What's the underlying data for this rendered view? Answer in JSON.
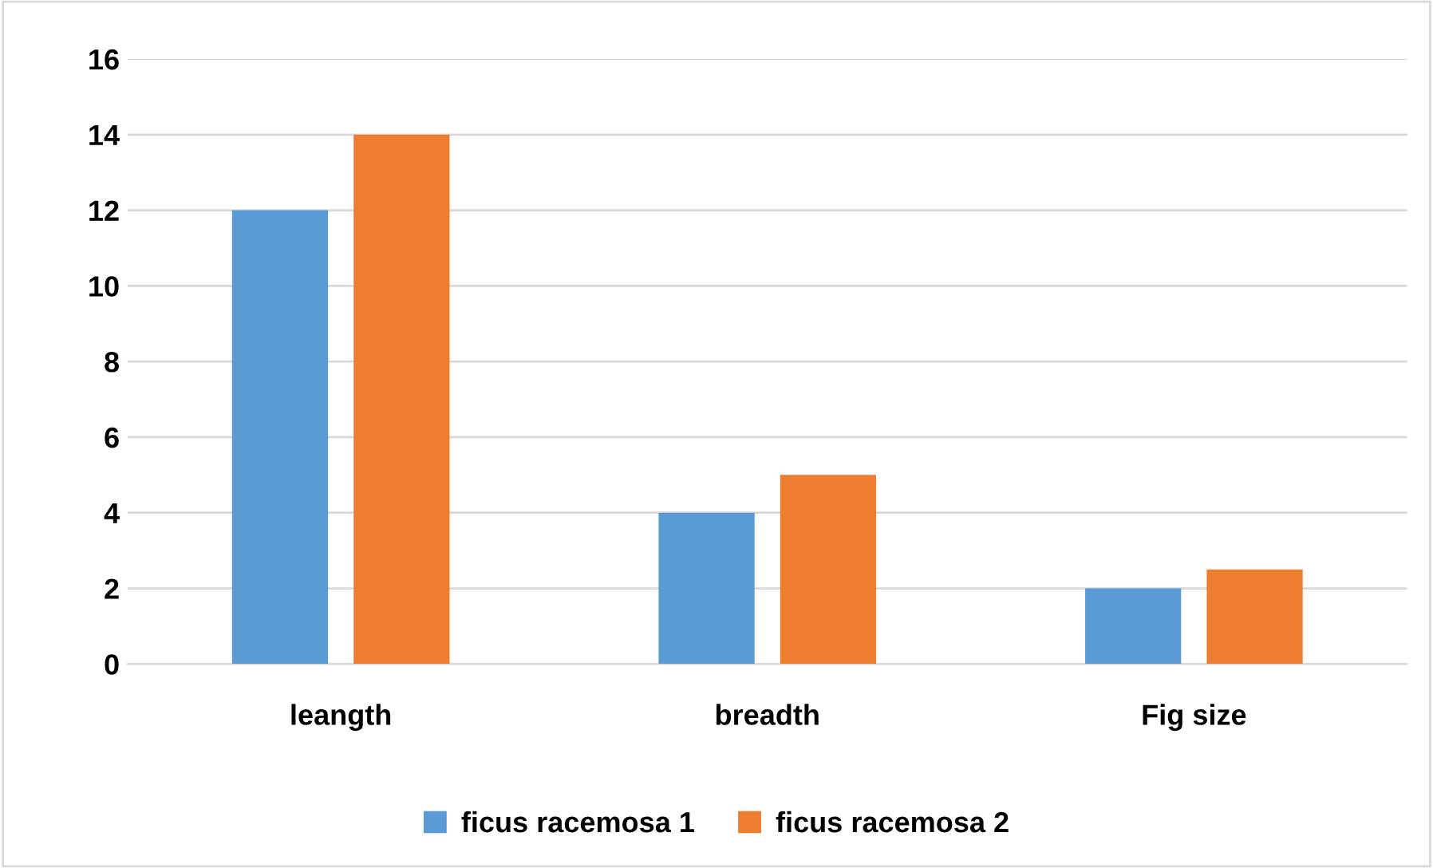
{
  "chart_data": {
    "type": "bar",
    "categories": [
      "leangth",
      "breadth",
      "Fig size"
    ],
    "series": [
      {
        "name": "ficus racemosa 1",
        "color": "#5b9bd5",
        "values": [
          12,
          4,
          2
        ]
      },
      {
        "name": "ficus racemosa 2",
        "color": "#ed7d31",
        "values": [
          14,
          5,
          2.5
        ]
      }
    ],
    "ylim": [
      0,
      16
    ],
    "yticks": [
      0,
      2,
      4,
      6,
      8,
      10,
      12,
      14,
      16
    ],
    "grid": "y",
    "legend": "bottom"
  }
}
